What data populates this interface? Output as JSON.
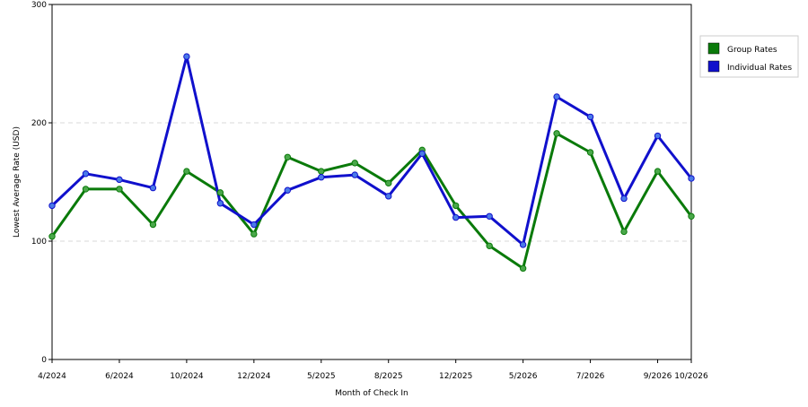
{
  "chart_data": {
    "type": "line",
    "xlabel": "Month of Check In",
    "ylabel": "Lowest Average Rate (USD)",
    "ylim": [
      0,
      300
    ],
    "yticks": [
      "0",
      "100",
      "200",
      "300"
    ],
    "grid": true,
    "legend_position": "right",
    "x_tick_labels": [
      "4/2024",
      "6/2024",
      "10/2024",
      "12/2024",
      "5/2025",
      "8/2025",
      "12/2025",
      "5/2026",
      "7/2026",
      "9/2026",
      "10/2026"
    ],
    "x_tick_index": [
      0,
      2,
      4,
      6,
      8,
      10,
      12,
      14,
      16,
      18,
      19
    ],
    "point_count": 20,
    "series": [
      {
        "name": "Group Rates",
        "color": "#0a7a0a",
        "marker_color": "#4aa84a",
        "values": [
          104,
          144,
          144,
          114,
          159,
          141,
          106,
          171,
          159,
          166,
          149,
          177,
          130,
          96,
          77,
          191,
          175,
          108,
          159,
          121
        ]
      },
      {
        "name": "Individual Rates",
        "color": "#1010cc",
        "marker_color": "#4a7ae8",
        "values": [
          130,
          157,
          152,
          145,
          256,
          132,
          114,
          143,
          154,
          156,
          138,
          174,
          120,
          121,
          97,
          222,
          205,
          136,
          189,
          153
        ]
      }
    ]
  }
}
